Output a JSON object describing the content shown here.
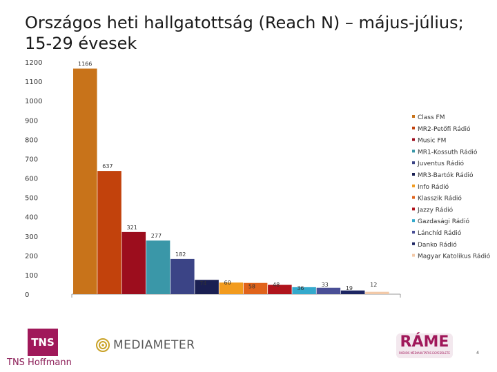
{
  "title": "Országos heti hallgatottság (Reach N) – május-július; 15-29 évesek",
  "chart_data": {
    "type": "bar",
    "title": "Országos heti hallgatottság (Reach N) – május-július; 15-29 évesek",
    "xlabel": "",
    "ylabel": "",
    "ylim": [
      0,
      1200
    ],
    "yticks": [
      0,
      100,
      200,
      300,
      400,
      500,
      600,
      700,
      800,
      900,
      1000,
      1100,
      1200
    ],
    "grid": false,
    "legend_position": "right",
    "categories": [
      "Class FM",
      "MR2-Petőfi Rádió",
      "Music FM",
      "MR1-Kossuth Rádió",
      "Juventus Rádió",
      "MR3-Bartók Rádió",
      "Info Rádió",
      "Klasszik Rádió",
      "Jazzy Rádió",
      "Gazdasági Rádió",
      "Lánchíd Rádió",
      "Danko Rádió",
      "Magyar Katolikus Rádió"
    ],
    "values": [
      1166,
      637,
      321,
      277,
      182,
      74,
      60,
      58,
      48,
      36,
      33,
      19,
      12
    ],
    "colors": [
      "#c8731a",
      "#c2420c",
      "#9c0d1d",
      "#3a97a8",
      "#3b4486",
      "#1a1f52",
      "#f29b1e",
      "#e0631b",
      "#b0141c",
      "#34a9cc",
      "#4a4f96",
      "#1d2663",
      "#f2c9a8"
    ]
  },
  "footer": {
    "tns_logo": "TNS",
    "company": "TNS Hoffmann",
    "mediameter": "MEDIAMETER",
    "rame": "RÁME",
    "rame_sub": "RÁDIÓS MÉDIAKUTATÁS EGYESÜLETE",
    "page_number": "4"
  },
  "colors": {
    "brand": "#a0185a"
  }
}
